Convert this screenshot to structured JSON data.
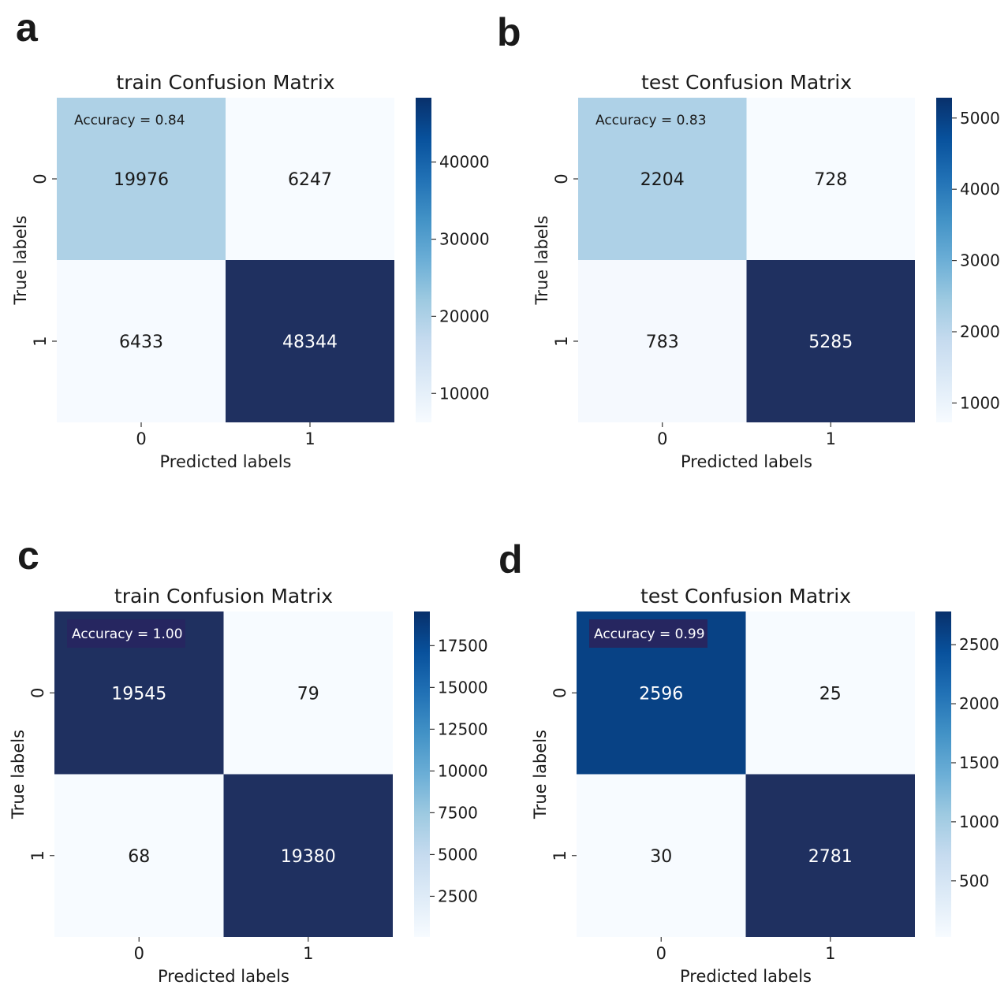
{
  "chart_data": [
    {
      "panel": "a",
      "type": "heatmap",
      "title": "train Confusion Matrix",
      "xlabel": "Predicted labels",
      "ylabel": "True labels",
      "x_ticks": [
        "0",
        "1"
      ],
      "y_ticks": [
        "0",
        "1"
      ],
      "matrix": [
        [
          19976,
          6247
        ],
        [
          6433,
          48344
        ]
      ],
      "annotation": "Accuracy = 0.84",
      "annotation_highlight": false,
      "colorbar": {
        "range": [
          6247,
          48344
        ],
        "ticks": [
          10000,
          20000,
          30000,
          40000
        ]
      }
    },
    {
      "panel": "b",
      "type": "heatmap",
      "title": "test Confusion Matrix",
      "xlabel": "Predicted labels",
      "ylabel": "True labels",
      "x_ticks": [
        "0",
        "1"
      ],
      "y_ticks": [
        "0",
        "1"
      ],
      "matrix": [
        [
          2204,
          728
        ],
        [
          783,
          5285
        ]
      ],
      "annotation": "Accuracy = 0.83",
      "annotation_highlight": false,
      "colorbar": {
        "range": [
          728,
          5285
        ],
        "ticks": [
          1000,
          2000,
          3000,
          4000,
          5000
        ]
      }
    },
    {
      "panel": "c",
      "type": "heatmap",
      "title": "train Confusion Matrix",
      "xlabel": "Predicted labels",
      "ylabel": "True labels",
      "x_ticks": [
        "0",
        "1"
      ],
      "y_ticks": [
        "0",
        "1"
      ],
      "matrix": [
        [
          19545,
          79
        ],
        [
          68,
          19380
        ]
      ],
      "annotation": "Accuracy = 1.00",
      "annotation_highlight": true,
      "colorbar": {
        "range": [
          68,
          19545
        ],
        "ticks": [
          2500,
          5000,
          7500,
          10000,
          12500,
          15000,
          17500
        ]
      }
    },
    {
      "panel": "d",
      "type": "heatmap",
      "title": "test Confusion Matrix",
      "xlabel": "Predicted labels",
      "ylabel": "True labels",
      "x_ticks": [
        "0",
        "1"
      ],
      "y_ticks": [
        "0",
        "1"
      ],
      "matrix": [
        [
          2596,
          25
        ],
        [
          30,
          2781
        ]
      ],
      "annotation": "Accuracy = 0.99",
      "annotation_highlight": true,
      "colorbar": {
        "range": [
          25,
          2781
        ],
        "ticks": [
          500,
          1000,
          1500,
          2000,
          2500
        ]
      }
    }
  ],
  "colors": {
    "colormap": [
      "#f7fbff",
      "#deebf7",
      "#c6dbef",
      "#9ecae1",
      "#6baed6",
      "#4292c6",
      "#2171b5",
      "#08519c",
      "#08306b"
    ],
    "high_cell": "#1f3060",
    "highlight_box": "#262660",
    "text_dark": "#1a1a1a",
    "text_light": "#ffffff"
  }
}
